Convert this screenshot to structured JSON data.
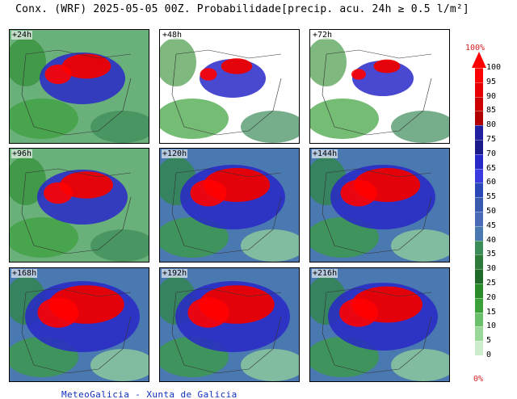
{
  "title": "Conx. (WRF) 2025-05-05 00Z. Probabilidade[precip. acu. 24h ≥ 0.5 l/m²]",
  "footer": "MeteoGalicia - Xunta de Galicia",
  "panels": [
    {
      "label": "+24h",
      "fill": 0.55
    },
    {
      "label": "+48h",
      "fill": 0.35
    },
    {
      "label": "+72h",
      "fill": 0.3
    },
    {
      "label": "+96h",
      "fill": 0.6
    },
    {
      "label": "+120h",
      "fill": 0.75
    },
    {
      "label": "+144h",
      "fill": 0.75
    },
    {
      "label": "+168h",
      "fill": 0.85
    },
    {
      "label": "+192h",
      "fill": 0.85
    },
    {
      "label": "+216h",
      "fill": 0.8
    }
  ],
  "colorbar": {
    "max_label": "100%",
    "min_label": "0%",
    "ticks": [
      "100",
      "95",
      "90",
      "85",
      "80",
      "75",
      "70",
      "65",
      "60",
      "55",
      "50",
      "45",
      "40",
      "35",
      "30",
      "25",
      "20",
      "15",
      "10",
      "5",
      "0"
    ],
    "colors": [
      "#ff0000",
      "#e80000",
      "#cc0000",
      "#b00000",
      "#2020a0",
      "#1a1a8a",
      "#2828c8",
      "#3a3ae0",
      "#2a48b8",
      "#3a5ab0",
      "#4a6ab8",
      "#4a78b0",
      "#3c8c5a",
      "#2e7a3a",
      "#1f6a28",
      "#2a8a2a",
      "#3aa03a",
      "#6ac06a",
      "#9ad89a",
      "#cceccc"
    ]
  }
}
